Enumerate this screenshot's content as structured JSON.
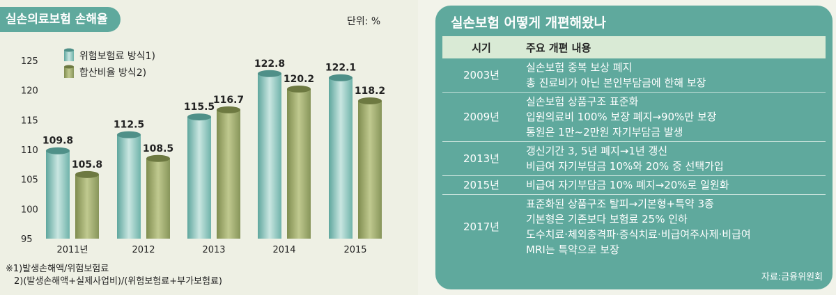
{
  "left_panel": {
    "title": "실손의료보험 손해율",
    "unit": "단위: %",
    "footnotes": [
      "※1)발생손해액/위험보험료",
      "2)(발생손해액+실제사업비)/(위험보험료+부가보험료)"
    ]
  },
  "chart_data": {
    "type": "bar",
    "categories": [
      "2011년",
      "2012",
      "2013",
      "2014",
      "2015"
    ],
    "series": [
      {
        "name": "위험보험료 방식1)",
        "values": [
          109.8,
          112.5,
          115.5,
          122.8,
          122.1
        ],
        "labels": [
          "109.8",
          "112.5",
          "115.5",
          "122.8",
          "122.1"
        ],
        "color": "#7ec3bb"
      },
      {
        "name": "합산비율 방식2)",
        "values": [
          105.8,
          108.5,
          116.7,
          120.2,
          118.2
        ],
        "labels": [
          "105.8",
          "108.5",
          "116.7",
          "120.2",
          "118.2"
        ],
        "color": "#8f9c5e"
      }
    ],
    "yticks": [
      95,
      100,
      105,
      110,
      115,
      120,
      125
    ],
    "ylim": [
      95,
      125
    ],
    "legend_position": "top-left",
    "grid": false
  },
  "right_panel": {
    "title": "실손보험 어떻게 개편해왔나",
    "headers": [
      "시기",
      "주요 개편 내용"
    ],
    "rows": [
      {
        "year": "2003년",
        "items": [
          "실손보험 중복 보상 폐지",
          "총 진료비가 아닌 본인부담금에 한해 보장"
        ]
      },
      {
        "year": "2009년",
        "items": [
          "실손보험 상품구조 표준화",
          "입원의료비 100% 보장 폐지→90%만 보장",
          "통원은 1만~2만원 자기부담금 발생"
        ]
      },
      {
        "year": "2013년",
        "items": [
          "갱신기간 3, 5년 폐지→1년 갱신",
          "비급여 자기부담금 10%와 20% 중 선택가입"
        ]
      },
      {
        "year": "2015년",
        "items": [
          "비급여 자기부담금 10% 폐지→20%로 일원화"
        ]
      },
      {
        "year": "2017년",
        "items": [
          "표준화된 상품구조 탈피→기본형+특약 3종",
          "기본형은 기존보다 보험료 25% 인하",
          "도수치료·체외충격파·증식치료·비급여주사제·비급여",
          "MRI는 특약으로 보장"
        ]
      }
    ],
    "source": "자료:금융위원회"
  }
}
